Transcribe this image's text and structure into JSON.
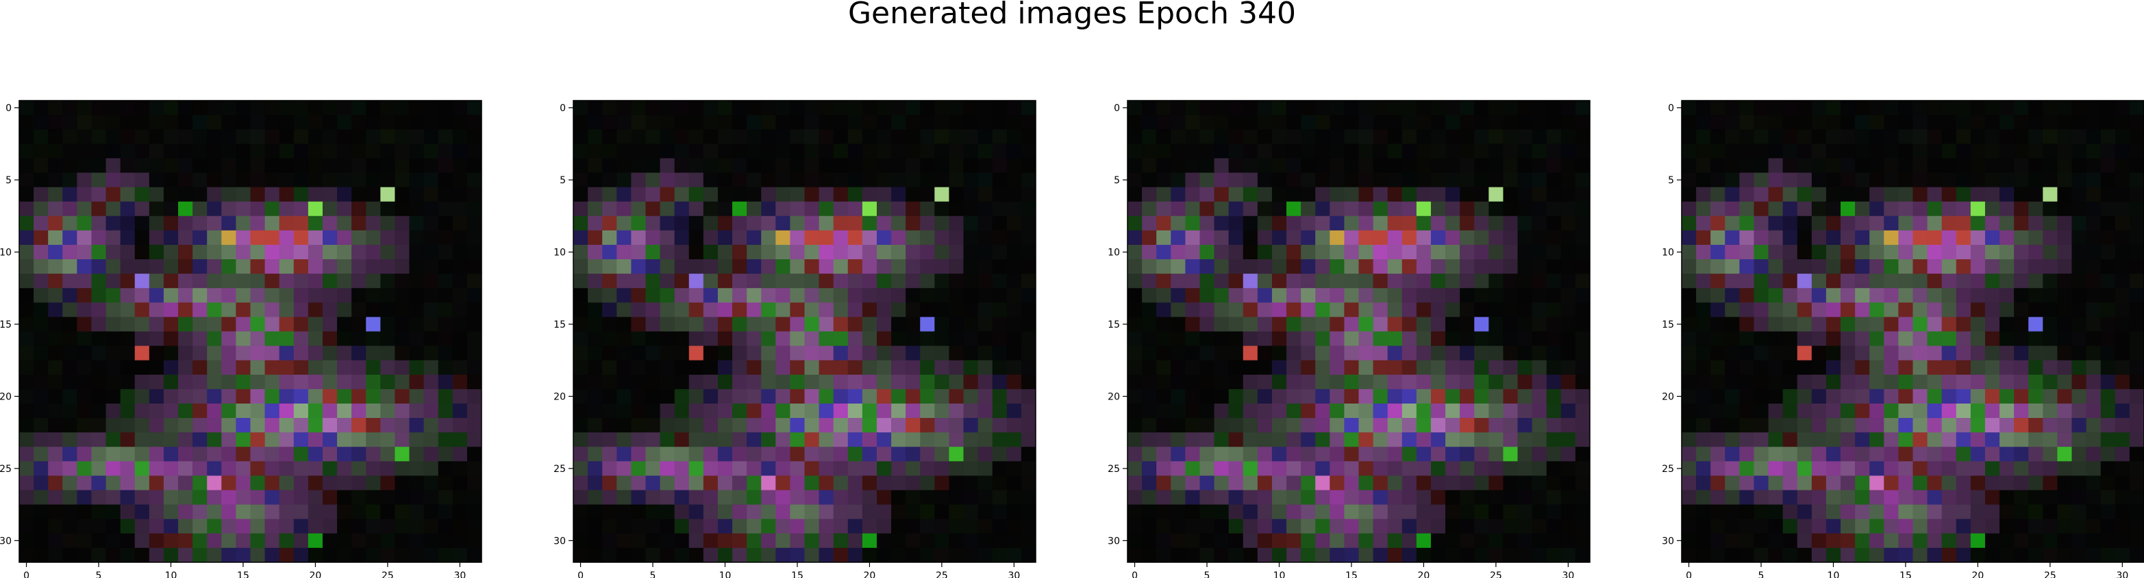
{
  "figure_title": "Generated images Epoch 340",
  "colors": {
    "background": "#ffffff",
    "image_base": "#040404",
    "axis": "#000000"
  },
  "chart_data": [
    {
      "type": "heatmap",
      "title": "",
      "xlabel": "",
      "ylabel": "",
      "xlim": [
        -0.5,
        31.5
      ],
      "ylim": [
        31.5,
        -0.5
      ],
      "xticks": [
        "0",
        "5",
        "10",
        "15",
        "20",
        "25",
        "30"
      ],
      "yticks": [
        "0",
        "5",
        "10",
        "15",
        "20",
        "25",
        "30"
      ],
      "grid": false
    },
    {
      "type": "heatmap",
      "title": "",
      "xlabel": "",
      "ylabel": "",
      "xlim": [
        -0.5,
        31.5
      ],
      "ylim": [
        31.5,
        -0.5
      ],
      "xticks": [
        "0",
        "5",
        "10",
        "15",
        "20",
        "25",
        "30"
      ],
      "yticks": [
        "0",
        "5",
        "10",
        "15",
        "20",
        "25",
        "30"
      ],
      "grid": false
    },
    {
      "type": "heatmap",
      "title": "",
      "xlabel": "",
      "ylabel": "",
      "xlim": [
        -0.5,
        31.5
      ],
      "ylim": [
        31.5,
        -0.5
      ],
      "xticks": [
        "0",
        "5",
        "10",
        "15",
        "20",
        "25",
        "30"
      ],
      "yticks": [
        "0",
        "5",
        "10",
        "15",
        "20",
        "25",
        "30"
      ],
      "grid": false
    },
    {
      "type": "heatmap",
      "title": "",
      "xlabel": "",
      "ylabel": "",
      "xlim": [
        -0.5,
        31.5
      ],
      "ylim": [
        31.5,
        -0.5
      ],
      "xticks": [
        "0",
        "5",
        "10",
        "15",
        "20",
        "25",
        "30"
      ],
      "yticks": [
        "0",
        "5",
        "10",
        "15",
        "20",
        "25",
        "30"
      ],
      "grid": false
    }
  ]
}
